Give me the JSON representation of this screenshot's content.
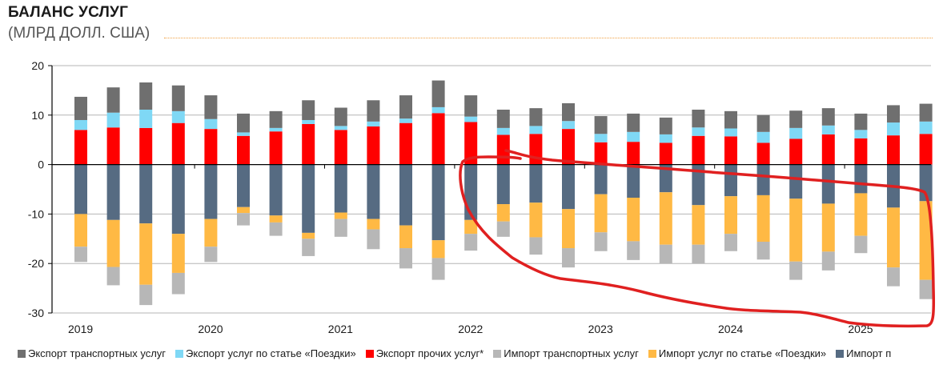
{
  "header": {
    "title": "БАЛАНС УСЛУГ",
    "subtitle": "(МЛРД ДОЛЛ. США)"
  },
  "legend": [
    {
      "key": "export_transport",
      "label": "Экспорт транспортных услуг",
      "color": "#6f6f6f"
    },
    {
      "key": "export_travel",
      "label": "Экспорт услуг по статье «Поездки»",
      "color": "#7fd8f5"
    },
    {
      "key": "export_other",
      "label": "Экспорт прочих услуг*",
      "color": "#ff0000"
    },
    {
      "key": "import_transport",
      "label": "Импорт транспортных услуг",
      "color": "#b7b7b7"
    },
    {
      "key": "import_travel",
      "label": "Импорт услуг по статье «Поездки»",
      "color": "#ffb944"
    },
    {
      "key": "import_other",
      "label": "Импорт п",
      "color": "#566b82"
    }
  ],
  "chart_data": {
    "type": "bar",
    "stacked": true,
    "title": "БАЛАНС УСЛУГ",
    "subtitle": "(МЛРД ДОЛЛ. США)",
    "xlabel": "",
    "ylabel": "",
    "ylim": [
      -30,
      20
    ],
    "yticks": [
      20,
      10,
      0,
      -10,
      -20,
      -30
    ],
    "grid": true,
    "legend_position": "bottom",
    "categories": [
      "2019 Q1",
      "2019 Q2",
      "2019 Q3",
      "2019 Q4",
      "2020 Q1",
      "2020 Q2",
      "2020 Q3",
      "2020 Q4",
      "2021 Q1",
      "2021 Q2",
      "2021 Q3",
      "2021 Q4",
      "2022 Q1",
      "2022 Q2",
      "2022 Q3",
      "2022 Q4",
      "2023 Q1",
      "2023 Q2",
      "2023 Q3",
      "2023 Q4",
      "2024 Q1",
      "2024 Q2",
      "2024 Q3",
      "2024 Q4",
      "2025 Q1",
      "2025 Q2",
      "2025 Q3"
    ],
    "year_labels": [
      {
        "label": "2019",
        "index": 0
      },
      {
        "label": "2020",
        "index": 4
      },
      {
        "label": "2021",
        "index": 8
      },
      {
        "label": "2022",
        "index": 12
      },
      {
        "label": "2023",
        "index": 16
      },
      {
        "label": "2024",
        "index": 20
      },
      {
        "label": "2025",
        "index": 24
      }
    ],
    "series": [
      {
        "key": "export_other",
        "name": "Экспорт прочих услуг*",
        "color": "#ff0000",
        "sign": "positive",
        "values": [
          7.0,
          7.5,
          7.4,
          8.4,
          7.2,
          5.8,
          6.7,
          8.2,
          7.0,
          7.7,
          8.4,
          10.4,
          8.6,
          6.0,
          6.2,
          7.2,
          4.5,
          4.6,
          4.4,
          5.8,
          5.7,
          4.4,
          5.2,
          6.1,
          5.3,
          5.9,
          6.2
        ]
      },
      {
        "key": "export_travel",
        "name": "Экспорт услуг по статье «Поездки»",
        "color": "#7fd8f5",
        "sign": "positive",
        "values": [
          2.0,
          3.0,
          3.7,
          2.4,
          2.0,
          0.7,
          0.7,
          0.8,
          0.8,
          1.0,
          0.9,
          1.2,
          1.1,
          1.4,
          1.6,
          1.6,
          1.7,
          2.0,
          1.7,
          1.7,
          1.6,
          2.2,
          2.2,
          1.8,
          1.7,
          2.6,
          2.5
        ]
      },
      {
        "key": "export_transport",
        "name": "Экспорт транспортных услуг",
        "color": "#6f6f6f",
        "sign": "positive",
        "values": [
          4.7,
          5.1,
          5.5,
          5.2,
          4.8,
          3.8,
          3.4,
          4.0,
          3.7,
          4.3,
          4.7,
          5.4,
          4.3,
          3.7,
          3.6,
          3.6,
          3.6,
          3.7,
          3.4,
          3.6,
          3.5,
          3.4,
          3.5,
          3.5,
          3.3,
          3.5,
          3.6
        ]
      },
      {
        "key": "import_other",
        "name": "Импорт прочих услуг",
        "color": "#566b82",
        "sign": "negative",
        "values": [
          -10.0,
          -11.2,
          -11.9,
          -14.0,
          -11.0,
          -8.6,
          -10.3,
          -13.8,
          -9.7,
          -11.0,
          -12.3,
          -15.3,
          -11.2,
          -8.0,
          -7.7,
          -9.0,
          -6.0,
          -6.7,
          -5.6,
          -8.2,
          -6.4,
          -6.2,
          -6.9,
          -7.9,
          -5.8,
          -8.7,
          -7.4
        ]
      },
      {
        "key": "import_travel",
        "name": "Импорт услуг по статье «Поездки»",
        "color": "#ffb944",
        "sign": "negative",
        "values": [
          -6.6,
          -9.5,
          -12.4,
          -7.9,
          -5.6,
          -1.2,
          -1.4,
          -1.2,
          -1.3,
          -2.1,
          -4.6,
          -3.6,
          -2.8,
          -3.5,
          -7.0,
          -7.9,
          -7.7,
          -8.8,
          -10.6,
          -8.0,
          -7.6,
          -9.4,
          -12.7,
          -9.7,
          -8.6,
          -12.1,
          -15.9
        ]
      },
      {
        "key": "import_transport",
        "name": "Импорт транспортных услуг",
        "color": "#b7b7b7",
        "sign": "negative",
        "values": [
          -3.1,
          -3.7,
          -4.1,
          -4.3,
          -3.1,
          -2.5,
          -2.7,
          -3.5,
          -3.6,
          -4.0,
          -4.1,
          -4.4,
          -3.4,
          -3.1,
          -3.5,
          -3.9,
          -3.8,
          -3.8,
          -3.8,
          -3.8,
          -3.5,
          -3.6,
          -3.7,
          -3.8,
          -3.5,
          -3.8,
          -3.9
        ]
      }
    ],
    "annotation": {
      "type": "hand-drawn-outline",
      "color": "#e02020",
      "covers_categories": [
        "2022 Q2",
        "2025 Q3"
      ]
    }
  }
}
